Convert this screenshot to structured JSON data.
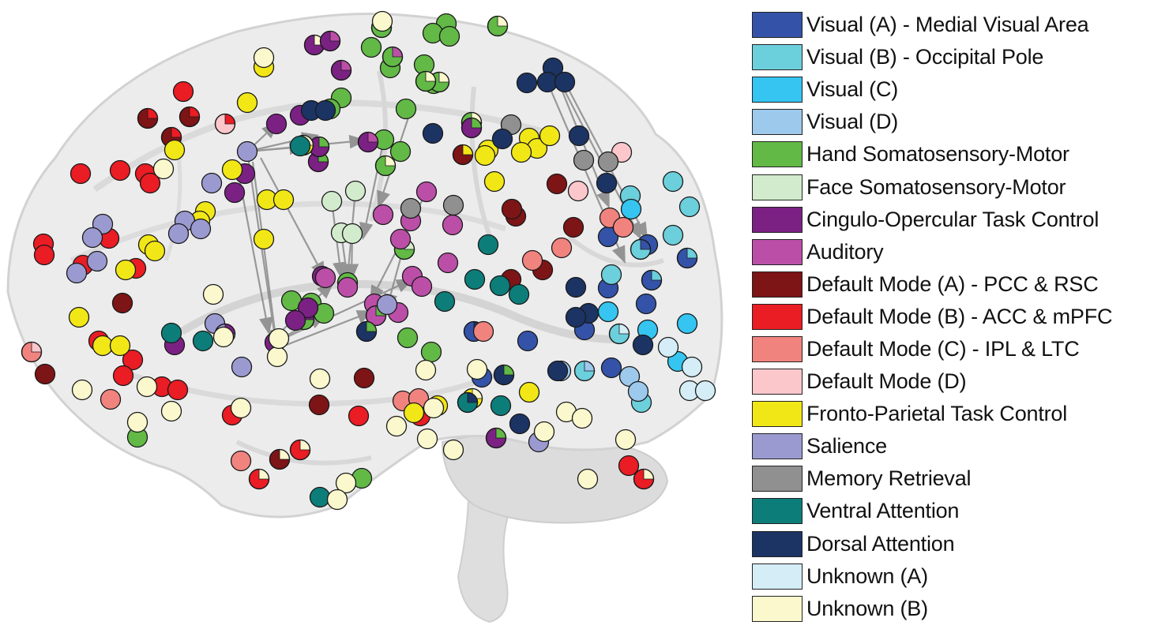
{
  "legend": [
    {
      "key": "visA",
      "label": "Visual (A) - Medial Visual Area",
      "color": "#3453a8"
    },
    {
      "key": "visB",
      "label": "Visual (B) - Occipital Pole",
      "color": "#6ccfdc"
    },
    {
      "key": "visC",
      "label": "Visual (C)",
      "color": "#35c5f0"
    },
    {
      "key": "visD",
      "label": "Visual (D)",
      "color": "#9dc9ec"
    },
    {
      "key": "hand",
      "label": "Hand Somatosensory-Motor",
      "color": "#62b946"
    },
    {
      "key": "face",
      "label": "Face Somatosensory-Motor",
      "color": "#d2ebcc"
    },
    {
      "key": "cingo",
      "label": "Cingulo-Opercular Task Control",
      "color": "#7b2184"
    },
    {
      "key": "aud",
      "label": "Auditory",
      "color": "#bb4fa8"
    },
    {
      "key": "dmnA",
      "label": "Default Mode (A) - PCC & RSC",
      "color": "#7d1416"
    },
    {
      "key": "dmnB",
      "label": "Default Mode (B) - ACC & mPFC",
      "color": "#ea1c24"
    },
    {
      "key": "dmnC",
      "label": "Default Mode (C) - IPL & LTC",
      "color": "#f1837f"
    },
    {
      "key": "dmnD",
      "label": "Default Mode (D)",
      "color": "#fbc7cb"
    },
    {
      "key": "fpn",
      "label": "Fronto-Parietal Task Control",
      "color": "#f2e716"
    },
    {
      "key": "sal",
      "label": "Salience",
      "color": "#9b9ad0"
    },
    {
      "key": "mem",
      "label": "Memory Retrieval",
      "color": "#909090"
    },
    {
      "key": "ven",
      "label": "Ventral Attention",
      "color": "#0d7d7a"
    },
    {
      "key": "dors",
      "label": "Dorsal Attention",
      "color": "#1c3464"
    },
    {
      "key": "unkA",
      "label": "Unknown (A)",
      "color": "#d4edf6"
    },
    {
      "key": "unkB",
      "label": "Unknown (B)",
      "color": "#fbf8cd"
    }
  ]
}
